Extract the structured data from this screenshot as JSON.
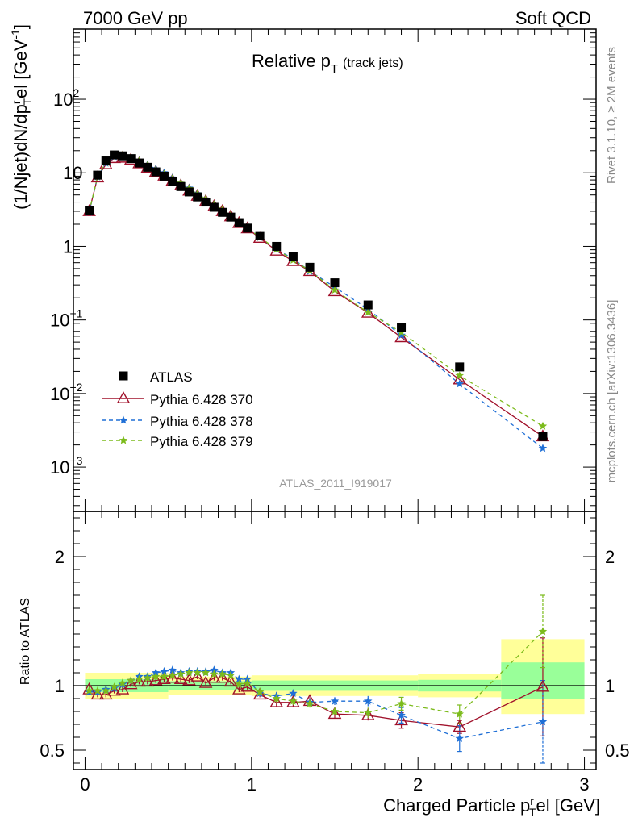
{
  "header": {
    "energy_label": "7000 GeV pp",
    "process_label": "Soft QCD"
  },
  "side_labels": {
    "rivet": "Rivet 3.1.10, ≥ 2M events",
    "mcplots": "mcplots.cern.ch [arXiv:1306.3436]"
  },
  "main_panel": {
    "title_main": "Relative p",
    "title_sub": "T",
    "title_suffix": "(track jets)",
    "ylabel": "(1/Njet)dN/dp",
    "ylabel_sup": "r",
    "ylabel_sub": "T",
    "ylabel_tail": "el [GeV",
    "ylabel_unit_sup": "-1",
    "ylabel_close": "]",
    "analysis_tag": "ATLAS_2011_I919017",
    "ytick_labels": [
      {
        "value": 0.001,
        "base": "10",
        "exp": "−3"
      },
      {
        "value": 0.01,
        "base": "10",
        "exp": "−2"
      },
      {
        "value": 0.1,
        "base": "10",
        "exp": "−1"
      },
      {
        "value": 1,
        "base": "1",
        "exp": ""
      },
      {
        "value": 10,
        "base": "10",
        "exp": ""
      },
      {
        "value": 100,
        "base": "10",
        "exp": "2"
      }
    ]
  },
  "ratio_panel": {
    "ylabel": "Ratio to ATLAS",
    "ytick_labels": [
      {
        "value": 0.5,
        "label": "0.5"
      },
      {
        "value": 1,
        "label": "1"
      },
      {
        "value": 2,
        "label": "2"
      }
    ]
  },
  "x_axis": {
    "label_main": "Charged Particle p",
    "label_sup": "r",
    "label_sub": "T",
    "label_tail": "el [GeV]",
    "tick_labels": [
      "0",
      "1",
      "2",
      "3"
    ]
  },
  "legend": [
    {
      "label": "ATLAS",
      "color": "#000000",
      "marker": "square"
    },
    {
      "label": "Pythia 6.428 370",
      "color": "#a0102a",
      "marker": "triangle"
    },
    {
      "label": "Pythia 6.428 378",
      "color": "#1f6fd6",
      "marker": "star"
    },
    {
      "label": "Pythia 6.428 379",
      "color": "#7cbb1c",
      "marker": "star"
    }
  ],
  "chart_data": {
    "type": "scatter",
    "x_scale": "linear",
    "y_scale": "log",
    "xlim": [
      -0.07,
      3.07
    ],
    "ylim": [
      0.00025,
      900
    ],
    "ratio_ylim": [
      0.35,
      2.35
    ],
    "x": [
      0.025,
      0.075,
      0.125,
      0.175,
      0.225,
      0.275,
      0.325,
      0.375,
      0.425,
      0.475,
      0.525,
      0.575,
      0.625,
      0.675,
      0.725,
      0.775,
      0.825,
      0.875,
      0.925,
      0.975,
      1.05,
      1.15,
      1.25,
      1.35,
      1.5,
      1.7,
      1.9,
      2.25,
      2.75
    ],
    "atlas": [
      3.1,
      9.3,
      14.5,
      17.5,
      17.0,
      15.6,
      13.6,
      11.9,
      10.3,
      9.0,
      7.6,
      6.5,
      5.5,
      4.7,
      4.0,
      3.4,
      2.9,
      2.5,
      2.1,
      1.77,
      1.4,
      1.0,
      0.72,
      0.52,
      0.32,
      0.16,
      0.08,
      0.023,
      0.0026
    ],
    "series": [
      {
        "name": "Pythia 6.428 370",
        "values": [
          3.0,
          8.6,
          13.0,
          15.8,
          16.0,
          15.0,
          13.4,
          11.7,
          10.3,
          9.1,
          7.8,
          6.7,
          5.7,
          4.85,
          4.1,
          3.5,
          3.0,
          2.55,
          2.07,
          1.75,
          1.3,
          0.87,
          0.63,
          0.46,
          0.245,
          0.125,
          0.058,
          0.0155,
          0.0026
        ],
        "ratio": [
          0.97,
          0.93,
          0.93,
          0.96,
          0.97,
          1.01,
          1.03,
          1.03,
          1.04,
          1.05,
          1.06,
          1.05,
          1.04,
          1.07,
          1.02,
          1.06,
          1.06,
          1.03,
          0.97,
          0.99,
          0.93,
          0.87,
          0.87,
          0.88,
          0.78,
          0.77,
          0.73,
          0.68,
          0.99
        ],
        "ratio_err": [
          0.03,
          0.02,
          0.02,
          0.02,
          0.02,
          0.02,
          0.02,
          0.02,
          0.02,
          0.02,
          0.02,
          0.02,
          0.02,
          0.02,
          0.02,
          0.02,
          0.02,
          0.02,
          0.02,
          0.02,
          0.02,
          0.03,
          0.03,
          0.03,
          0.03,
          0.04,
          0.06,
          0.05,
          0.38
        ]
      },
      {
        "name": "Pythia 6.428 378",
        "values": [
          2.9,
          8.8,
          13.5,
          16.6,
          17.0,
          16.0,
          14.5,
          12.9,
          11.3,
          10.0,
          8.5,
          7.2,
          6.2,
          5.2,
          4.4,
          3.7,
          3.12,
          2.62,
          2.14,
          1.83,
          1.32,
          0.91,
          0.68,
          0.46,
          0.28,
          0.14,
          0.062,
          0.0135,
          0.0018
        ],
        "ratio": [
          0.95,
          0.95,
          0.97,
          0.98,
          1.01,
          1.04,
          1.07,
          1.07,
          1.1,
          1.11,
          1.12,
          1.1,
          1.11,
          1.11,
          1.11,
          1.12,
          1.1,
          1.1,
          1.05,
          1.05,
          0.94,
          0.92,
          0.94,
          0.87,
          0.88,
          0.88,
          0.77,
          0.59,
          0.72
        ],
        "ratio_err": [
          0.02,
          0.02,
          0.02,
          0.02,
          0.02,
          0.02,
          0.02,
          0.02,
          0.02,
          0.02,
          0.02,
          0.02,
          0.02,
          0.02,
          0.02,
          0.02,
          0.02,
          0.02,
          0.02,
          0.02,
          0.02,
          0.03,
          0.03,
          0.03,
          0.03,
          0.04,
          0.06,
          0.1,
          0.32
        ]
      },
      {
        "name": "Pythia 6.428 379",
        "values": [
          2.95,
          8.9,
          13.8,
          16.9,
          17.3,
          16.1,
          14.4,
          12.6,
          11.0,
          9.6,
          8.3,
          7.2,
          6.1,
          5.15,
          4.4,
          3.7,
          3.15,
          2.65,
          2.15,
          1.8,
          1.33,
          0.92,
          0.65,
          0.47,
          0.255,
          0.127,
          0.068,
          0.0175,
          0.0036
        ],
        "ratio": [
          0.96,
          0.96,
          0.96,
          0.99,
          1.02,
          1.04,
          1.05,
          1.06,
          1.07,
          1.07,
          1.08,
          1.09,
          1.1,
          1.1,
          1.1,
          1.09,
          1.09,
          1.08,
          1.01,
          1.02,
          0.95,
          0.9,
          0.88,
          0.86,
          0.8,
          0.79,
          0.86,
          0.78,
          1.42
        ],
        "ratio_err": [
          0.02,
          0.02,
          0.02,
          0.02,
          0.02,
          0.02,
          0.02,
          0.02,
          0.02,
          0.02,
          0.02,
          0.02,
          0.02,
          0.02,
          0.02,
          0.02,
          0.02,
          0.02,
          0.02,
          0.02,
          0.02,
          0.03,
          0.03,
          0.03,
          0.03,
          0.04,
          0.05,
          0.07,
          0.28
        ]
      }
    ],
    "ratio_bands": [
      {
        "x": [
          0.0,
          0.5
        ],
        "yellow": [
          0.9,
          1.1
        ],
        "green": [
          0.95,
          1.05
        ]
      },
      {
        "x": [
          0.5,
          1.0
        ],
        "yellow": [
          0.93,
          1.07
        ],
        "green": [
          0.965,
          1.035
        ]
      },
      {
        "x": [
          1.0,
          2.0
        ],
        "yellow": [
          0.92,
          1.08
        ],
        "green": [
          0.96,
          1.04
        ]
      },
      {
        "x": [
          2.0,
          2.5
        ],
        "yellow": [
          0.91,
          1.09
        ],
        "green": [
          0.955,
          1.045
        ]
      },
      {
        "x": [
          2.5,
          3.0
        ],
        "yellow": [
          0.78,
          1.36
        ],
        "green": [
          0.9,
          1.18
        ]
      }
    ]
  }
}
